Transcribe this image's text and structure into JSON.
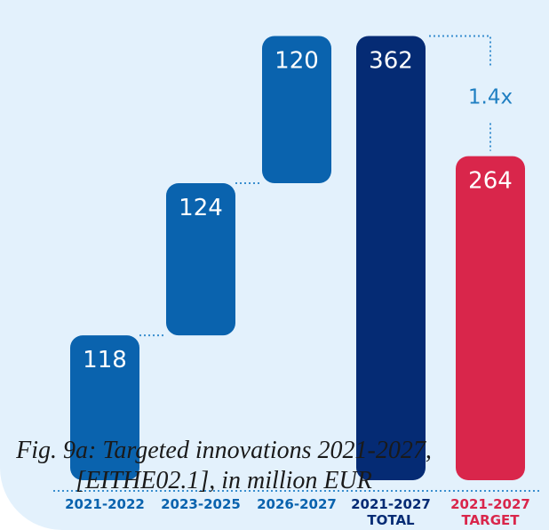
{
  "chart_data": {
    "type": "bar",
    "layout": "waterfall",
    "categories": [
      [
        "2021-2022"
      ],
      [
        "2023-2025"
      ],
      [
        "2026-2027"
      ],
      [
        "2021-2027",
        "TOTAL"
      ],
      [
        "2021-2027",
        "TARGET"
      ]
    ],
    "values": [
      118,
      124,
      120,
      362,
      264
    ],
    "bar_roles": [
      "increment",
      "increment",
      "increment",
      "total",
      "target"
    ],
    "multiplier_label": "1.4x",
    "colors": {
      "increment": "#0a63ae",
      "total": "#052b74",
      "target": "#d9264b",
      "increment_label": "#0a63ae",
      "total_label": "#052b74",
      "target_label": "#d9264b",
      "connector": "#3a8fcf",
      "background": "#e3f1fc"
    }
  },
  "caption": {
    "lines": [
      "Fig. 9a: Targeted innovations 2021-2027,",
      "[EITHE02.1], in million EUR"
    ]
  }
}
